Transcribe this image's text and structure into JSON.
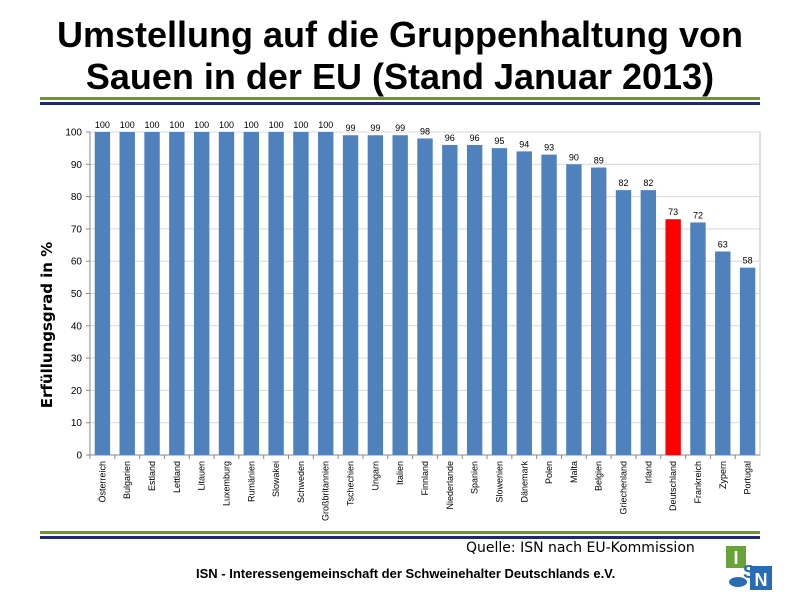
{
  "header": {
    "title_line1": "Umstellung auf die Gruppenhaltung von",
    "title_line2": "Sauen in der EU (Stand Januar 2013)"
  },
  "chart_data": {
    "type": "bar",
    "ylabel": "Erfüllungsgrad in %",
    "ylim": [
      0,
      100
    ],
    "yticks": [
      0,
      10,
      20,
      30,
      40,
      50,
      60,
      70,
      80,
      90,
      100
    ],
    "grid": true,
    "categories": [
      "Österreich",
      "Bulgarien",
      "Estland",
      "Lettland",
      "Litauen",
      "Luxemburg",
      "Rumänien",
      "Slowakei",
      "Schweden",
      "Großbritannien",
      "Tschechien",
      "Ungarn",
      "Italien",
      "Finnland",
      "Niederlande",
      "Spanien",
      "Slowenien",
      "Dänemark",
      "Polen",
      "Malta",
      "Belgien",
      "Griechenland",
      "Irland",
      "Deutschland",
      "Frankreich",
      "Zypern",
      "Portugal"
    ],
    "values": [
      100,
      100,
      100,
      100,
      100,
      100,
      100,
      100,
      100,
      100,
      99,
      99,
      99,
      98,
      96,
      96,
      95,
      94,
      93,
      90,
      89,
      82,
      82,
      73,
      72,
      63,
      58
    ],
    "highlight": "Deutschland",
    "colors": {
      "bar": "#4f81bd",
      "highlight": "#ff0000",
      "grid": "#d9d9d9",
      "axis": "#888888"
    }
  },
  "footer": {
    "source": "Quelle: ISN nach EU-Kommission",
    "organization": "ISN - Interessengemeinschaft der Schweinehalter Deutschlands e.V."
  },
  "logo": {
    "letters": [
      "I",
      "S",
      "N"
    ],
    "colors": {
      "green": "#6aa23a",
      "blue": "#2a6bb5"
    }
  }
}
